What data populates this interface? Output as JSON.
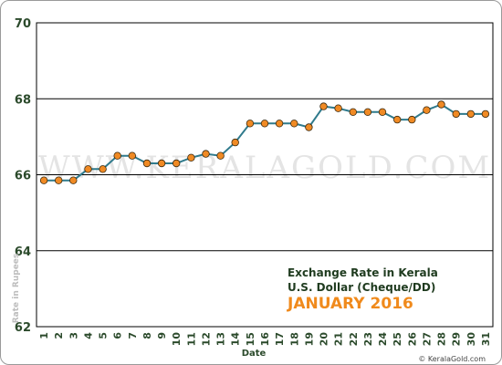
{
  "chart_data": {
    "type": "line",
    "title": "Exchange Rate in Kerala",
    "subtitle": "U.S. Dollar (Cheque/DD)",
    "period": "JANUARY 2016",
    "xlabel": "Date",
    "ylabel": "Rate in Rupees",
    "ylim": [
      62,
      70
    ],
    "yticks": [
      62,
      64,
      66,
      68,
      70
    ],
    "grid": true,
    "watermark": "WWW.KERALAGOLD.COM",
    "credit": "© KeralaGold.com",
    "x": [
      1,
      2,
      3,
      4,
      5,
      6,
      7,
      8,
      9,
      10,
      11,
      12,
      13,
      14,
      15,
      16,
      17,
      18,
      19,
      20,
      21,
      22,
      23,
      24,
      25,
      26,
      27,
      28,
      29,
      30,
      31
    ],
    "series": [
      {
        "values": [
          65.85,
          65.85,
          65.85,
          66.15,
          66.15,
          66.5,
          66.5,
          66.3,
          66.3,
          66.3,
          66.45,
          66.55,
          66.5,
          66.85,
          67.35,
          67.35,
          67.35,
          67.35,
          67.25,
          67.8,
          67.75,
          67.65,
          67.65,
          67.65,
          67.45,
          67.45,
          67.7,
          67.85,
          67.6,
          67.6,
          67.6
        ],
        "line_color": "#2f7a8c",
        "marker_color": "#f08a24"
      }
    ]
  }
}
